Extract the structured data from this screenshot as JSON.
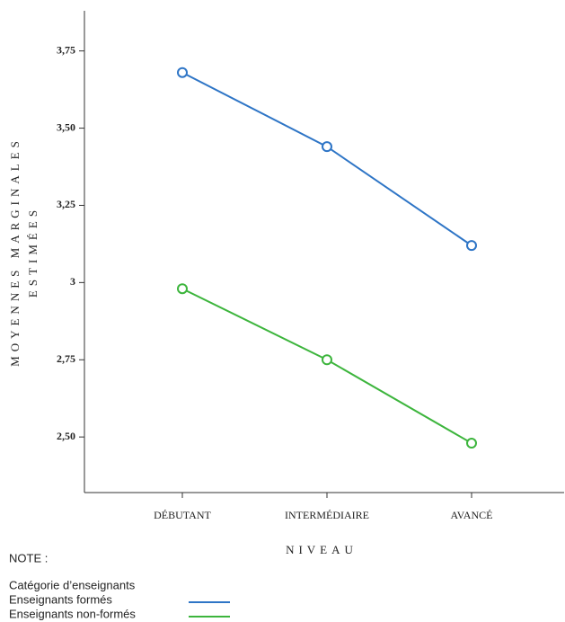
{
  "chart_data": {
    "type": "line",
    "ylabel": [
      "MOYENNES MARGINALES",
      "ESTIMÉES"
    ],
    "xlabel": "NIVEAU",
    "categories": [
      "DÉBUTANT",
      "INTERMÉDIAIRE",
      "AVANCÉ"
    ],
    "series": [
      {
        "name": "Enseignants formés",
        "color": "#2e75c6",
        "values": [
          3.68,
          3.44,
          3.12
        ]
      },
      {
        "name": "Enseignants non-formés",
        "color": "#3db53d",
        "values": [
          2.98,
          2.75,
          2.48
        ]
      }
    ],
    "ylim": [
      2.32,
      3.88
    ],
    "yticks": [
      {
        "value": 2.5,
        "label": "2,50"
      },
      {
        "value": 2.75,
        "label": "2,75"
      },
      3,
      {
        "value": 3.25,
        "label": "3,25"
      },
      {
        "value": 3.5,
        "label": "3,50"
      },
      {
        "value": 3.75,
        "label": "3,75"
      }
    ],
    "grid": false,
    "note": "NOTE :",
    "legend_title": "Catégorie d’enseignants"
  }
}
